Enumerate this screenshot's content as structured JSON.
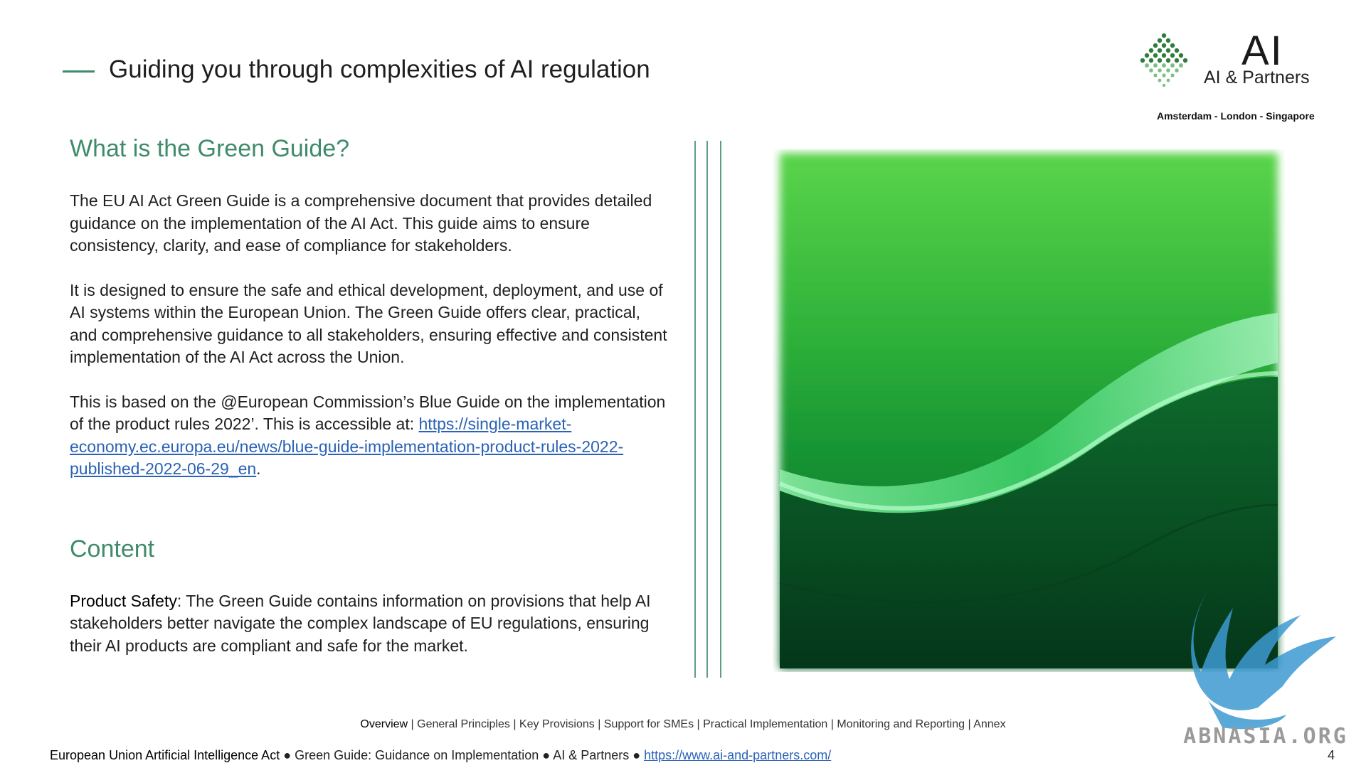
{
  "header": {
    "title": "Guiding you through complexities of AI regulation"
  },
  "logo": {
    "mark": "AI",
    "name": "AI & Partners",
    "cities": "Amsterdam - London - Singapore"
  },
  "section1": {
    "heading": "What is the Green Guide?",
    "p1": "The EU AI Act Green Guide is a comprehensive document that provides detailed guidance on the implementation of the AI Act. This guide aims to ensure consistency, clarity, and ease of compliance for stakeholders.",
    "p2": "It is designed to ensure the safe and ethical development, deployment, and use of AI systems within the European Union. The Green Guide offers clear, practical, and comprehensive guidance to all stakeholders, ensuring effective and consistent implementation of the AI Act across the Union.",
    "p3_text": "This is based on the @European Commission’s Blue Guide on the implementation of the product rules 2022’. This is accessible at: ",
    "p3_link": "https://single-market-economy.ec.europa.eu/news/blue-guide-implementation-product-rules-2022-published-2022-06-29_en",
    "p3_end": "."
  },
  "section2": {
    "heading": "Content",
    "item_label": "Product Safety",
    "item_text": ": The Green Guide contains information on provisions that help AI stakeholders better navigate the complex landscape of EU regulations, ensuring their AI products are compliant and safe for the market."
  },
  "nav": {
    "items": [
      "Overview",
      "General Principles",
      "Key Provisions",
      "Support for SMEs",
      "Practical Implementation",
      "Monitoring and Reporting",
      "Annex"
    ],
    "separator": " | "
  },
  "footer": {
    "act": "European Union Artificial Intelligence Act",
    "bullet": " ● ",
    "guide": "Green Guide: Guidance on Implementation",
    "org": "AI & Partners",
    "url": "https://www.ai-and-partners.com/",
    "page": "4"
  },
  "watermark": {
    "text": "ABNASIA.ORG"
  },
  "colors": {
    "accent": "#3f8b6a",
    "link": "#2a62b7"
  }
}
